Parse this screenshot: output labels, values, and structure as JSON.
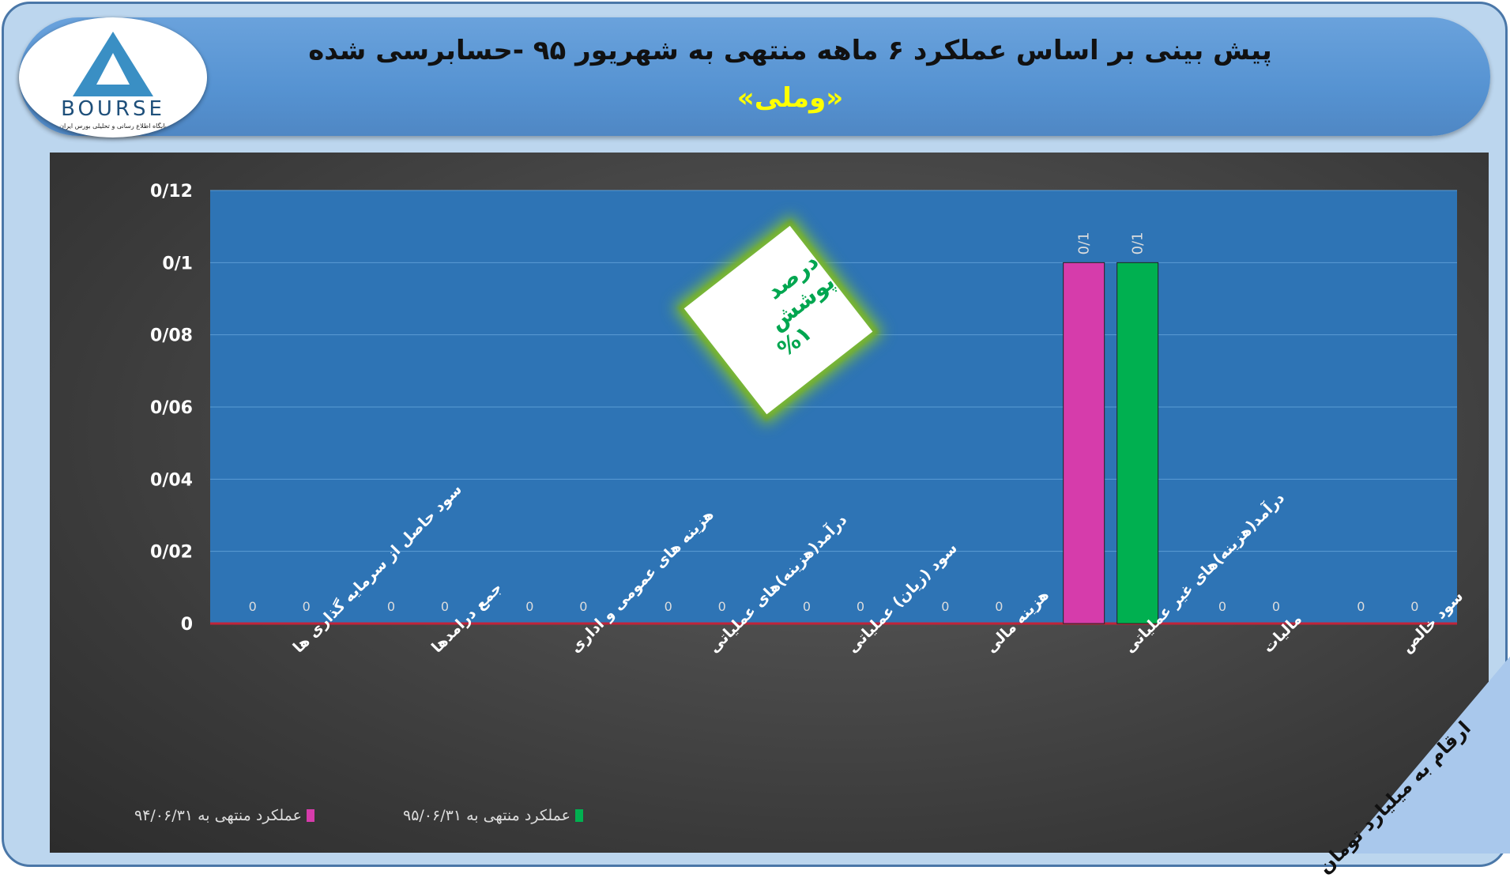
{
  "header": {
    "title": "پیش بینی بر اساس عملکرد ۶ ماهه منتهی به شهریور ۹۵ -حسابرسی شده",
    "subtitle": "«وملی»"
  },
  "logo": {
    "text": "BOURSE",
    "tagline": "پایگاه اطلاع رسانی و تحلیلی بورس ایران"
  },
  "note": {
    "line1": "درصد پوشش",
    "line2": "%۱"
  },
  "units_label": "ارقام به میلیارد تومان",
  "colors": {
    "plot_bg": "#2e74b5",
    "series1": "#d63cab",
    "series2": "#00b050",
    "baseline": "#c0243a"
  },
  "chart_data": {
    "type": "bar",
    "categories": [
      "سود حاصل از سرمایه گذاری ها",
      "جمع درامدها",
      "هزینه های عمومی و اداری",
      "درآمد(هزینه)های عملیاتی",
      "سود (زیان) عملیاتی",
      "هزینه مالی",
      "درآمد(هزینه)های غیر عملیاتی",
      "مالیات",
      "سود خالص"
    ],
    "series": [
      {
        "name": "عملکرد منتهی به ۹۴/۰۶/۳۱",
        "values": [
          0,
          0,
          0,
          0,
          0,
          0,
          0.1,
          0,
          0
        ],
        "labels": [
          "0",
          "0",
          "0",
          "0",
          "0",
          "0",
          "0/1",
          "0",
          "0"
        ]
      },
      {
        "name": "عملکرد منتهی به ۹۵/۰۶/۳۱",
        "values": [
          0,
          0,
          0,
          0,
          0,
          0,
          0.1,
          0,
          0
        ],
        "labels": [
          "0",
          "0",
          "0",
          "0",
          "0",
          "0",
          "0/1",
          "0",
          "0"
        ]
      }
    ],
    "ylim": [
      0,
      0.12
    ],
    "yticks": [
      "0",
      "0/02",
      "0/04",
      "0/06",
      "0/08",
      "0/1",
      "0/12"
    ],
    "grid": true,
    "legend": "bottom-left"
  }
}
